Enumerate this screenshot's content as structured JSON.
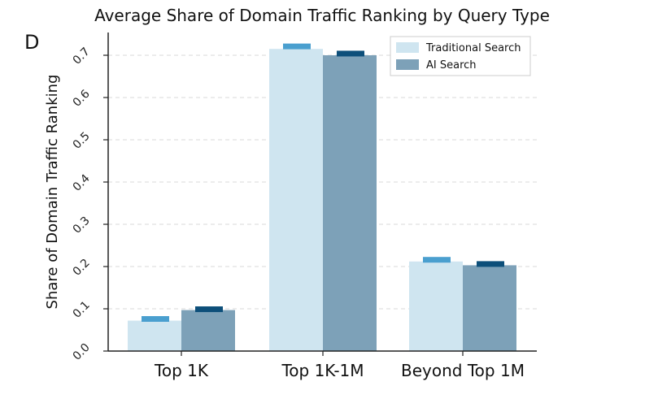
{
  "panel_label": "D",
  "chart_data": {
    "type": "bar",
    "title": "Average Share of Domain Traffic Ranking by Query Type",
    "xlabel": "",
    "ylabel": "Share of Domain Traffic Ranking",
    "ylim": [
      0,
      0.75
    ],
    "yticks": [
      "0.0",
      "0.1",
      "0.2",
      "0.3",
      "0.4",
      "0.5",
      "0.6",
      "0.7"
    ],
    "grid": "horizontal-dashed",
    "legend_position": "top-right",
    "categories": [
      "Top 1K",
      "Top 1K-1M",
      "Beyond Top 1M"
    ],
    "series": [
      {
        "name": "Traditional Search",
        "color": "#cfe5f0",
        "marker_color": "#4a9fcf",
        "values": [
          0.072,
          0.715,
          0.212
        ],
        "marker_values": [
          0.075,
          0.72,
          0.215
        ]
      },
      {
        "name": "AI Search",
        "color": "#7da1b8",
        "marker_color": "#0d4f7a",
        "values": [
          0.097,
          0.7,
          0.203
        ],
        "marker_values": [
          0.098,
          0.703,
          0.205
        ]
      }
    ]
  }
}
